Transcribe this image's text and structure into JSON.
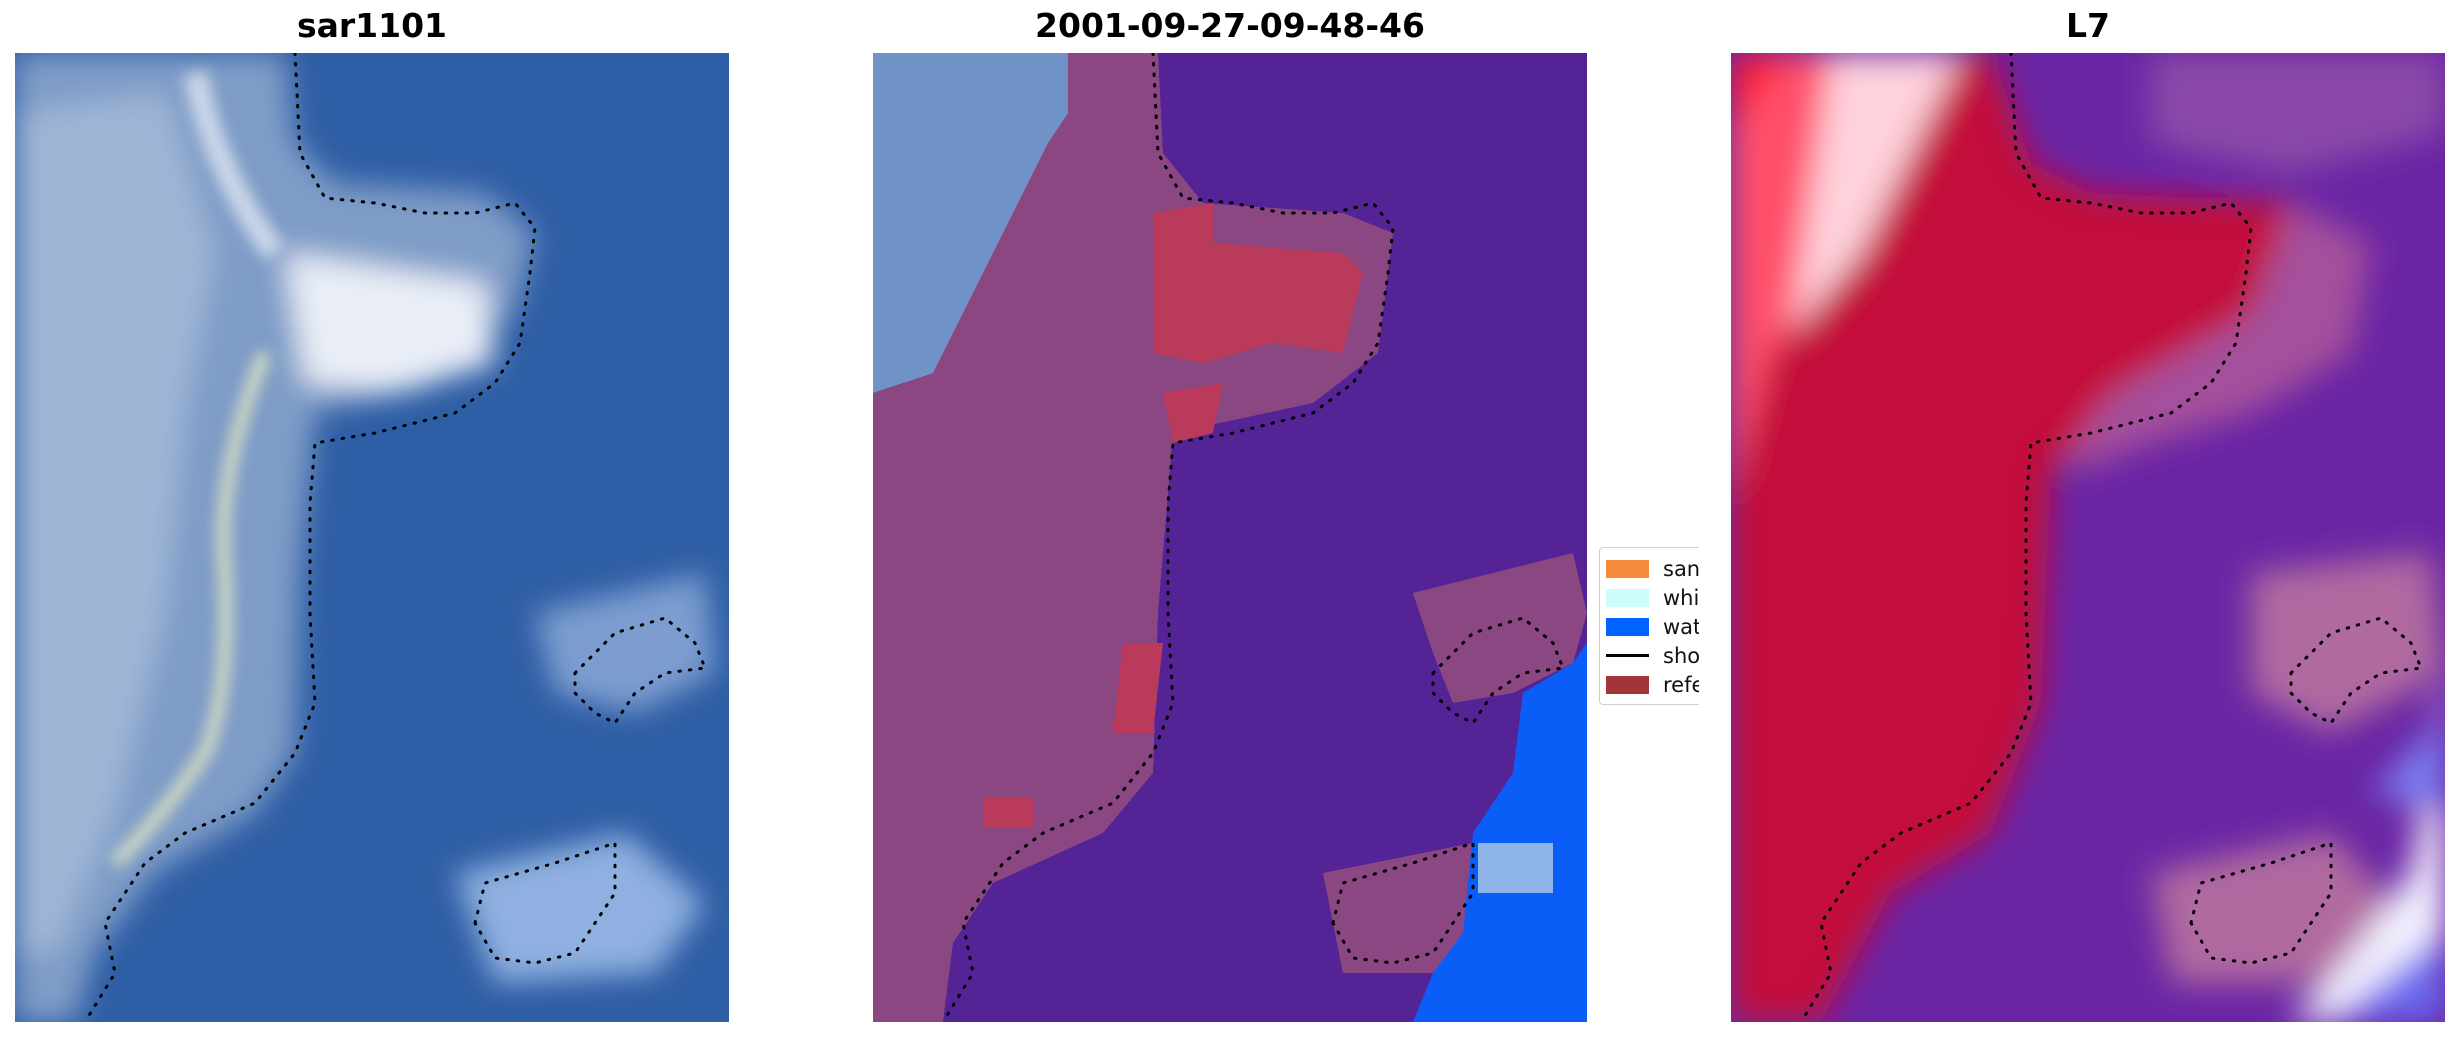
{
  "panels": [
    {
      "title": "sar1101"
    },
    {
      "title": "2001-09-27-09-48-46"
    },
    {
      "title": "L7"
    }
  ],
  "legend": {
    "items": [
      {
        "label": "sand",
        "color": "#f58c3c",
        "kind": "patch"
      },
      {
        "label": "whitew",
        "color": "#ccfdfb",
        "kind": "patch"
      },
      {
        "label": "water",
        "color": "#0062ff",
        "kind": "patch"
      },
      {
        "label": "shoreli",
        "color": "#000000",
        "kind": "line"
      },
      {
        "label": "referen",
        "color": "#a3343a",
        "kind": "patch"
      }
    ]
  },
  "colors": {
    "sea_blue": "#2f5fa6",
    "land_purple": "#542396",
    "land_overlay": "#8a4782",
    "sand_red": "#c0223c",
    "whitewater_blue": "#0b5df8",
    "shoreline": "#000000"
  }
}
